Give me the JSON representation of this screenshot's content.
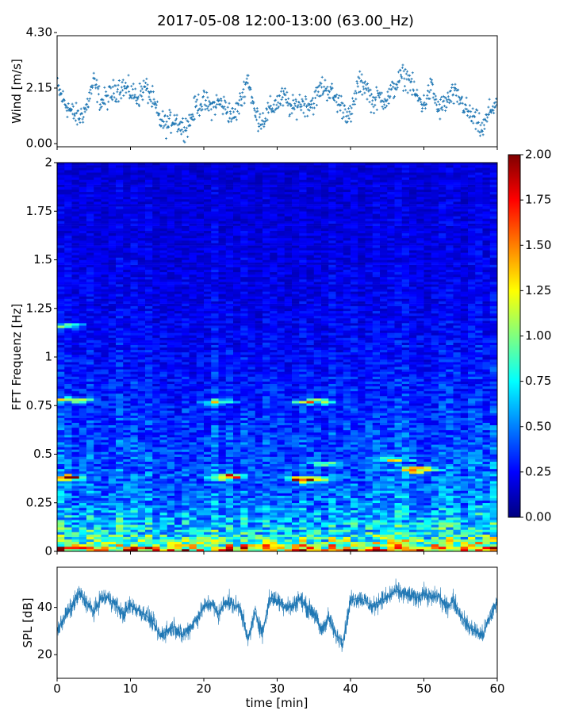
{
  "chart_data": [
    {
      "type": "scatter",
      "title": "2017-05-08 12:00-13:00 (63.00_Hz)",
      "ylabel": "Wind [m/s]",
      "ylim": [
        0,
        4.3
      ],
      "y_ticks": [
        "0.00",
        "2.15",
        "4.30"
      ],
      "xlim": [
        0,
        60
      ],
      "marker": "+",
      "color": "#1f77b4",
      "series": [
        {
          "x": [
            0,
            1,
            2,
            3,
            4,
            5,
            6,
            7,
            8,
            9,
            10,
            11,
            12,
            13,
            14,
            15,
            16,
            17,
            18,
            19,
            20,
            21,
            22,
            23,
            24,
            25,
            26,
            27,
            28,
            29,
            30,
            31,
            32,
            33,
            34,
            35,
            36,
            37,
            38,
            39,
            40,
            41,
            42,
            43,
            44,
            45,
            46,
            47,
            48,
            49,
            50,
            51,
            52,
            53,
            54,
            55,
            56,
            57,
            58,
            59,
            60
          ],
          "y": [
            2.2,
            1.6,
            1.2,
            1.0,
            1.4,
            2.4,
            1.6,
            1.8,
            2.1,
            2.2,
            2.0,
            1.8,
            2.2,
            1.7,
            0.9,
            0.7,
            1.0,
            0.6,
            0.8,
            1.5,
            1.6,
            1.4,
            1.6,
            1.4,
            1.0,
            1.6,
            2.6,
            1.1,
            0.9,
            1.3,
            1.6,
            1.8,
            1.3,
            1.6,
            1.5,
            1.6,
            2.2,
            2.1,
            1.7,
            1.4,
            1.0,
            2.3,
            2.3,
            1.6,
            1.8,
            1.7,
            2.2,
            2.6,
            2.5,
            1.8,
            1.5,
            2.2,
            1.3,
            1.6,
            1.9,
            1.7,
            1.2,
            0.9,
            0.5,
            1.3,
            1.6
          ]
        }
      ]
    },
    {
      "type": "heatmap",
      "ylabel": "FFT Frequenz [Hz]",
      "xlim": [
        0,
        60
      ],
      "ylim": [
        0,
        2
      ],
      "y_ticks": [
        "0",
        "0.25",
        "0.5",
        "0.75",
        "1",
        "1.25",
        "1.5",
        "1.75",
        "2"
      ],
      "colormap": "jet",
      "colorbar": {
        "range": [
          0,
          2
        ],
        "ticks": [
          "0.00",
          "0.25",
          "0.50",
          "0.75",
          "1.00",
          "1.25",
          "1.50",
          "1.75",
          "2.00"
        ]
      },
      "freq_profile": {
        "freq": [
          0,
          0.02,
          0.05,
          0.1,
          0.15,
          0.25,
          0.35,
          0.45,
          0.6,
          0.8,
          1.0,
          1.3,
          1.6,
          2.0
        ],
        "level": [
          1.6,
          1.3,
          0.95,
          0.75,
          0.65,
          0.5,
          0.45,
          0.42,
          0.38,
          0.32,
          0.27,
          0.22,
          0.2,
          0.18
        ]
      },
      "hotspots": [
        {
          "t": 1,
          "f": 0.38,
          "level": 1.9
        },
        {
          "t": 23,
          "f": 0.385,
          "level": 1.9
        },
        {
          "t": 34,
          "f": 0.37,
          "level": 1.8
        },
        {
          "t": 49,
          "f": 0.42,
          "level": 1.9
        },
        {
          "t": 2,
          "f": 0.78,
          "level": 1.2
        },
        {
          "t": 22,
          "f": 0.77,
          "level": 1.1
        },
        {
          "t": 35,
          "f": 0.77,
          "level": 1.2
        },
        {
          "t": 1,
          "f": 1.16,
          "level": 1.0
        },
        {
          "t": 37,
          "f": 0.45,
          "level": 1.2
        },
        {
          "t": 46,
          "f": 0.47,
          "level": 1.2
        }
      ]
    },
    {
      "type": "line",
      "ylabel": "SPL [dB]",
      "xlabel": "time [min]",
      "xlim": [
        0,
        60
      ],
      "x_ticks": [
        "0",
        "10",
        "20",
        "30",
        "40",
        "50",
        "60"
      ],
      "ylim": [
        10,
        57
      ],
      "y_ticks": [
        "20",
        "40"
      ],
      "color": "#1f77b4",
      "series": [
        {
          "x": [
            0,
            1,
            2,
            3,
            4,
            5,
            6,
            7,
            8,
            9,
            10,
            11,
            12,
            13,
            14,
            15,
            16,
            17,
            18,
            19,
            20,
            21,
            22,
            23,
            24,
            25,
            26,
            27,
            28,
            29,
            30,
            31,
            32,
            33,
            34,
            35,
            36,
            37,
            38,
            39,
            40,
            41,
            42,
            43,
            44,
            45,
            46,
            47,
            48,
            49,
            50,
            51,
            52,
            53,
            54,
            55,
            56,
            57,
            58,
            59,
            60
          ],
          "y": [
            30,
            36,
            40,
            46,
            42,
            38,
            44,
            44,
            41,
            37,
            41,
            39,
            37,
            34,
            28,
            30,
            32,
            28,
            31,
            35,
            40,
            42,
            37,
            43,
            41,
            40,
            26,
            38,
            29,
            44,
            43,
            41,
            40,
            44,
            40,
            38,
            30,
            36,
            28,
            26,
            43,
            44,
            43,
            40,
            43,
            44,
            47,
            46,
            45,
            44,
            46,
            44,
            45,
            40,
            43,
            37,
            32,
            30,
            28,
            36,
            42
          ]
        }
      ]
    }
  ]
}
